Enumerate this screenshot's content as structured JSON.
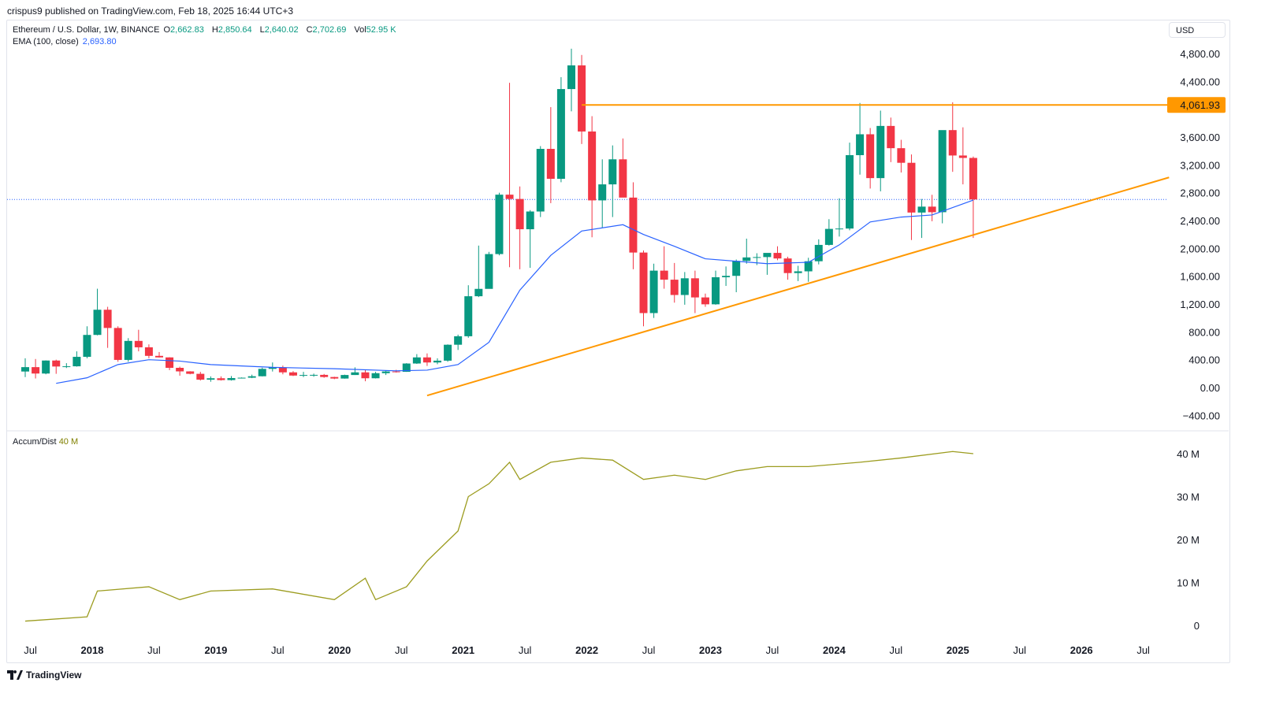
{
  "header": {
    "published": "crispus9 published on TradingView.com, Feb 18, 2025 16:44 UTC+3"
  },
  "legend": {
    "symbol": "Ethereum / U.S. Dollar, 1W, BINANCE",
    "o_label": "O",
    "o": "2,662.83",
    "h_label": "H",
    "h": "2,850.64",
    "l_label": "L",
    "l": "2,640.02",
    "c_label": "C",
    "c": "2,702.69",
    "vol_label": "Vol",
    "vol": "52.95 K",
    "ema_label": "EMA (100, close)",
    "ema": "2,693.80"
  },
  "currency": "USD",
  "indicator": {
    "label": "Accum/Dist",
    "value": "40 M"
  },
  "footer": {
    "brand": "TradingView"
  },
  "colors": {
    "up": "#089981",
    "down": "#f23645",
    "ema": "#2962ff",
    "lines": "#ff9800",
    "ad": "#9c9c1f"
  },
  "chart_data": {
    "type": "candlestick",
    "price_axis": {
      "ticks": [
        "4,800.00",
        "4,400.00",
        "3,600.00",
        "3,200.00",
        "2,800.00",
        "2,400.00",
        "2,000.00",
        "1,600.00",
        "1,200.00",
        "800.00",
        "400.00",
        "0.00",
        "−400.00"
      ],
      "tick_values": [
        4800,
        4400,
        3600,
        3200,
        2800,
        2400,
        2000,
        1600,
        1200,
        800,
        400,
        0,
        -400
      ],
      "range": [
        -500,
        5100
      ]
    },
    "time_axis": {
      "ticks": [
        "Jul",
        "2018",
        "Jul",
        "2019",
        "Jul",
        "2020",
        "Jul",
        "2021",
        "Jul",
        "2022",
        "Jul",
        "2023",
        "Jul",
        "2024",
        "Jul",
        "2025",
        "Jul",
        "2026",
        "Jul"
      ],
      "tick_dates": [
        2017.5,
        2018,
        2018.5,
        2019,
        2019.5,
        2020,
        2020.5,
        2021,
        2021.5,
        2022,
        2022.5,
        2023,
        2023.5,
        2024,
        2024.5,
        2025,
        2025.5,
        2026,
        2026.5
      ]
    },
    "resistance": {
      "value": 4061.93,
      "label": "4,061.93",
      "from": "2021-12",
      "to": "2026-09"
    },
    "trendline": {
      "from": [
        "2020-09",
        -115
      ],
      "to": [
        "2026-09",
        3020
      ]
    },
    "last_price": 2702.69,
    "candles_monthly_ohlc": [
      [
        "2017-06",
        230,
        420,
        150,
        293
      ],
      [
        "2017-07",
        293,
        410,
        130,
        201
      ],
      [
        "2017-08",
        201,
        390,
        190,
        388
      ],
      [
        "2017-09",
        388,
        400,
        197,
        302
      ],
      [
        "2017-10",
        302,
        350,
        280,
        305
      ],
      [
        "2017-11",
        305,
        520,
        300,
        441
      ],
      [
        "2017-12",
        441,
        880,
        420,
        756
      ],
      [
        "2018-01",
        756,
        1420,
        750,
        1118
      ],
      [
        "2018-02",
        1118,
        1160,
        570,
        856
      ],
      [
        "2018-03",
        856,
        880,
        370,
        397
      ],
      [
        "2018-04",
        397,
        710,
        370,
        670
      ],
      [
        "2018-05",
        670,
        830,
        520,
        578
      ],
      [
        "2018-06",
        578,
        620,
        420,
        455
      ],
      [
        "2018-07",
        455,
        510,
        430,
        433
      ],
      [
        "2018-08",
        433,
        435,
        250,
        283
      ],
      [
        "2018-09",
        283,
        300,
        170,
        232
      ],
      [
        "2018-10",
        232,
        235,
        190,
        197
      ],
      [
        "2018-11",
        197,
        225,
        100,
        113
      ],
      [
        "2018-12",
        113,
        160,
        83,
        133
      ],
      [
        "2019-01",
        133,
        160,
        100,
        107
      ],
      [
        "2019-02",
        107,
        165,
        100,
        136
      ],
      [
        "2019-03",
        136,
        145,
        130,
        141
      ],
      [
        "2019-04",
        141,
        185,
        135,
        162
      ],
      [
        "2019-05",
        162,
        285,
        160,
        268
      ],
      [
        "2019-06",
        268,
        360,
        230,
        290
      ],
      [
        "2019-07",
        290,
        315,
        190,
        218
      ],
      [
        "2019-08",
        218,
        235,
        165,
        172
      ],
      [
        "2019-09",
        172,
        225,
        150,
        180
      ],
      [
        "2019-10",
        180,
        200,
        155,
        182
      ],
      [
        "2019-11",
        182,
        195,
        140,
        151
      ],
      [
        "2019-12",
        151,
        155,
        120,
        129
      ],
      [
        "2020-01",
        129,
        185,
        127,
        180
      ],
      [
        "2020-02",
        180,
        290,
        180,
        218
      ],
      [
        "2020-03",
        218,
        250,
        90,
        133
      ],
      [
        "2020-04",
        133,
        225,
        130,
        206
      ],
      [
        "2020-05",
        206,
        245,
        180,
        231
      ],
      [
        "2020-06",
        231,
        255,
        215,
        226
      ],
      [
        "2020-07",
        226,
        350,
        225,
        345
      ],
      [
        "2020-08",
        345,
        480,
        340,
        433
      ],
      [
        "2020-09",
        433,
        490,
        310,
        360
      ],
      [
        "2020-10",
        360,
        420,
        335,
        386
      ],
      [
        "2020-11",
        386,
        620,
        370,
        615
      ],
      [
        "2020-12",
        615,
        760,
        540,
        737
      ],
      [
        "2021-01",
        737,
        1470,
        715,
        1312
      ],
      [
        "2021-02",
        1312,
        2040,
        1300,
        1418
      ],
      [
        "2021-03",
        1418,
        1950,
        1430,
        1918
      ],
      [
        "2021-04",
        1918,
        2800,
        1900,
        2772
      ],
      [
        "2021-05",
        2772,
        4380,
        1730,
        2710
      ],
      [
        "2021-06",
        2710,
        2890,
        1700,
        2275
      ],
      [
        "2021-07",
        2275,
        2550,
        1720,
        2530
      ],
      [
        "2021-08",
        2530,
        3470,
        2450,
        3430
      ],
      [
        "2021-09",
        3430,
        4030,
        2650,
        3000
      ],
      [
        "2021-10",
        3000,
        4460,
        2950,
        4290
      ],
      [
        "2021-11",
        4290,
        4870,
        3970,
        4630
      ],
      [
        "2021-12",
        4630,
        4780,
        3500,
        3680
      ],
      [
        "2022-01",
        3680,
        3900,
        2160,
        2690
      ],
      [
        "2022-02",
        2690,
        3280,
        2300,
        2920
      ],
      [
        "2022-03",
        2920,
        3480,
        2450,
        3280
      ],
      [
        "2022-04",
        3280,
        3580,
        2750,
        2730
      ],
      [
        "2022-05",
        2730,
        2950,
        1700,
        1940
      ],
      [
        "2022-06",
        1940,
        1970,
        880,
        1070
      ],
      [
        "2022-07",
        1070,
        1780,
        1000,
        1680
      ],
      [
        "2022-08",
        1680,
        2030,
        1420,
        1550
      ],
      [
        "2022-09",
        1550,
        1790,
        1220,
        1330
      ],
      [
        "2022-10",
        1330,
        1660,
        1190,
        1570
      ],
      [
        "2022-11",
        1570,
        1680,
        1070,
        1295
      ],
      [
        "2022-12",
        1295,
        1350,
        1160,
        1196
      ],
      [
        "2023-01",
        1196,
        1680,
        1190,
        1585
      ],
      [
        "2023-02",
        1585,
        1740,
        1460,
        1605
      ],
      [
        "2023-03",
        1605,
        1840,
        1370,
        1820
      ],
      [
        "2023-04",
        1820,
        2140,
        1780,
        1870
      ],
      [
        "2023-05",
        1870,
        1930,
        1760,
        1875
      ],
      [
        "2023-06",
        1875,
        1930,
        1620,
        1935
      ],
      [
        "2023-07",
        1935,
        2030,
        1830,
        1855
      ],
      [
        "2023-08",
        1855,
        1880,
        1550,
        1645
      ],
      [
        "2023-09",
        1645,
        1750,
        1530,
        1670
      ],
      [
        "2023-10",
        1670,
        1865,
        1520,
        1815
      ],
      [
        "2023-11",
        1815,
        2130,
        1770,
        2050
      ],
      [
        "2023-12",
        2050,
        2420,
        2040,
        2280
      ],
      [
        "2024-01",
        2280,
        2720,
        2170,
        2285
      ],
      [
        "2024-02",
        2285,
        3520,
        2260,
        3340
      ],
      [
        "2024-03",
        3340,
        4090,
        3060,
        3640
      ],
      [
        "2024-04",
        3640,
        3730,
        2860,
        3010
      ],
      [
        "2024-05",
        3010,
        3980,
        2820,
        3760
      ],
      [
        "2024-06",
        3760,
        3880,
        3240,
        3440
      ],
      [
        "2024-07",
        3440,
        3560,
        3090,
        3230
      ],
      [
        "2024-08",
        3230,
        3350,
        2120,
        2515
      ],
      [
        "2024-09",
        2515,
        2710,
        2150,
        2600
      ],
      [
        "2024-10",
        2600,
        2770,
        2390,
        2520
      ],
      [
        "2024-11",
        2520,
        3680,
        2360,
        3700
      ],
      [
        "2024-12",
        3700,
        4100,
        3100,
        3335
      ],
      [
        "2025-01",
        3335,
        3740,
        2920,
        3300
      ],
      [
        "2025-02",
        3300,
        3320,
        2150,
        2703
      ]
    ],
    "ema_100": [
      [
        "2017-09",
        60
      ],
      [
        "2017-12",
        140
      ],
      [
        "2018-03",
        330
      ],
      [
        "2018-06",
        400
      ],
      [
        "2018-09",
        380
      ],
      [
        "2018-12",
        330
      ],
      [
        "2019-06",
        290
      ],
      [
        "2019-12",
        270
      ],
      [
        "2020-06",
        240
      ],
      [
        "2020-09",
        250
      ],
      [
        "2020-12",
        330
      ],
      [
        "2021-03",
        650
      ],
      [
        "2021-06",
        1400
      ],
      [
        "2021-09",
        1900
      ],
      [
        "2021-12",
        2250
      ],
      [
        "2022-04",
        2340
      ],
      [
        "2022-06",
        2200
      ],
      [
        "2022-09",
        2030
      ],
      [
        "2022-12",
        1850
      ],
      [
        "2023-06",
        1780
      ],
      [
        "2023-10",
        1800
      ],
      [
        "2024-01",
        2050
      ],
      [
        "2024-04",
        2380
      ],
      [
        "2024-07",
        2450
      ],
      [
        "2024-10",
        2480
      ],
      [
        "2025-01",
        2640
      ],
      [
        "2025-02",
        2694
      ]
    ],
    "accum_dist": {
      "ticks": [
        "40 M",
        "30 M",
        "20 M",
        "10 M",
        "0"
      ],
      "tick_values": [
        40,
        30,
        20,
        10,
        0
      ],
      "unit": "M",
      "points": [
        [
          "2017-06",
          1
        ],
        [
          "2017-12",
          2
        ],
        [
          "2018-01",
          8
        ],
        [
          "2018-06",
          9
        ],
        [
          "2018-09",
          6
        ],
        [
          "2018-12",
          8
        ],
        [
          "2019-06",
          8.5
        ],
        [
          "2019-12",
          6
        ],
        [
          "2020-03",
          11
        ],
        [
          "2020-04",
          6
        ],
        [
          "2020-07",
          9
        ],
        [
          "2020-09",
          15
        ],
        [
          "2020-12",
          22
        ],
        [
          "2021-01",
          30
        ],
        [
          "2021-03",
          33
        ],
        [
          "2021-05",
          38
        ],
        [
          "2021-06",
          34
        ],
        [
          "2021-09",
          38
        ],
        [
          "2021-12",
          39
        ],
        [
          "2022-03",
          38.5
        ],
        [
          "2022-06",
          34
        ],
        [
          "2022-09",
          35
        ],
        [
          "2022-12",
          34
        ],
        [
          "2023-03",
          36
        ],
        [
          "2023-06",
          37
        ],
        [
          "2023-10",
          37
        ],
        [
          "2024-03",
          38
        ],
        [
          "2024-07",
          39
        ],
        [
          "2024-12",
          40.5
        ],
        [
          "2025-02",
          40
        ]
      ]
    }
  }
}
